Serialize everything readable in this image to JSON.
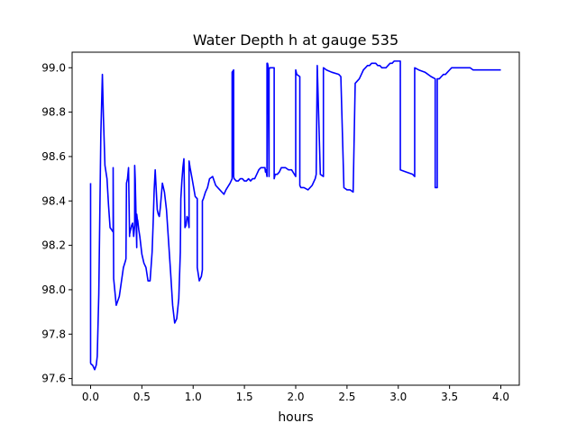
{
  "chart_data": {
    "type": "line",
    "title": "Water Depth h at gauge 535",
    "xlabel": "hours",
    "ylabel": "",
    "xlim": [
      -0.18,
      4.18
    ],
    "ylim": [
      97.57,
      99.07
    ],
    "xticks": [
      0.0,
      0.5,
      1.0,
      1.5,
      2.0,
      2.5,
      3.0,
      3.5,
      4.0
    ],
    "xtick_labels": [
      "0.0",
      "0.5",
      "1.0",
      "1.5",
      "2.0",
      "2.5",
      "3.0",
      "3.5",
      "4.0"
    ],
    "yticks": [
      97.6,
      97.8,
      98.0,
      98.2,
      98.4,
      98.6,
      98.8,
      99.0
    ],
    "ytick_labels": [
      "97.6",
      "97.8",
      "98.0",
      "98.2",
      "98.4",
      "98.6",
      "98.8",
      "99.0"
    ],
    "grid": false,
    "legend": false,
    "series": [
      {
        "color": "#0000ff",
        "x": [
          0.0,
          0.0,
          0.0,
          0.005,
          0.02,
          0.04,
          0.055,
          0.065,
          0.08,
          0.1,
          0.115,
          0.125,
          0.14,
          0.16,
          0.175,
          0.19,
          0.205,
          0.22,
          0.22,
          0.225,
          0.25,
          0.28,
          0.32,
          0.34,
          0.345,
          0.35,
          0.36,
          0.37,
          0.38,
          0.38,
          0.39,
          0.4,
          0.41,
          0.42,
          0.43,
          0.43,
          0.435,
          0.44,
          0.45,
          0.45,
          0.455,
          0.46,
          0.47,
          0.48,
          0.5,
          0.52,
          0.54,
          0.56,
          0.58,
          0.6,
          0.61,
          0.62,
          0.63,
          0.64,
          0.65,
          0.66,
          0.67,
          0.68,
          0.7,
          0.72,
          0.74,
          0.76,
          0.78,
          0.8,
          0.82,
          0.84,
          0.86,
          0.875,
          0.88,
          0.89,
          0.9,
          0.91,
          0.92,
          0.93,
          0.94,
          0.95,
          0.96,
          0.96,
          0.97,
          0.99,
          1.02,
          1.04,
          1.04,
          1.06,
          1.08,
          1.09,
          1.09,
          1.1,
          1.12,
          1.14,
          1.16,
          1.19,
          1.22,
          1.26,
          1.3,
          1.32,
          1.36,
          1.38,
          1.38,
          1.395,
          1.395,
          1.4,
          1.42,
          1.44,
          1.46,
          1.48,
          1.5,
          1.52,
          1.54,
          1.56,
          1.58,
          1.6,
          1.62,
          1.64,
          1.66,
          1.68,
          1.7,
          1.705,
          1.71,
          1.72,
          1.72,
          1.725,
          1.73,
          1.74,
          1.74,
          1.745,
          1.75,
          1.77,
          1.79,
          1.79,
          1.8,
          1.82,
          1.84,
          1.86,
          1.9,
          1.93,
          1.96,
          2.0,
          2.0,
          2.01,
          2.04,
          2.04,
          2.05,
          2.08,
          2.12,
          2.16,
          2.19,
          2.2,
          2.2,
          2.21,
          2.24,
          2.24,
          2.27,
          2.27,
          2.3,
          2.35,
          2.42,
          2.44,
          2.44,
          2.47,
          2.5,
          2.53,
          2.56,
          2.56,
          2.58,
          2.6,
          2.62,
          2.64,
          2.66,
          2.68,
          2.7,
          2.72,
          2.74,
          2.76,
          2.78,
          2.8,
          2.82,
          2.84,
          2.86,
          2.88,
          2.9,
          2.92,
          2.94,
          2.96,
          2.98,
          3.0,
          3.02,
          3.02,
          3.08,
          3.14,
          3.16,
          3.16,
          3.2,
          3.26,
          3.32,
          3.36,
          3.36,
          3.38,
          3.38,
          3.4,
          3.42,
          3.44,
          3.46,
          3.48,
          3.5,
          3.52,
          3.55,
          3.58,
          3.61,
          3.64,
          3.67,
          3.7,
          3.73,
          3.76,
          3.79,
          3.82,
          3.85,
          3.88,
          3.91,
          3.94,
          3.97,
          4.0
        ],
        "y": [
          98.48,
          97.98,
          97.67,
          97.665,
          97.66,
          97.64,
          97.66,
          97.7,
          97.98,
          98.7,
          98.97,
          98.78,
          98.56,
          98.5,
          98.38,
          98.28,
          98.27,
          98.26,
          98.55,
          98.05,
          97.93,
          97.97,
          98.1,
          98.13,
          98.14,
          98.48,
          98.5,
          98.55,
          98.24,
          98.25,
          98.27,
          98.29,
          98.3,
          98.24,
          98.29,
          98.56,
          98.5,
          98.4,
          98.19,
          98.34,
          98.32,
          98.31,
          98.27,
          98.24,
          98.16,
          98.12,
          98.1,
          98.04,
          98.04,
          98.17,
          98.3,
          98.45,
          98.54,
          98.45,
          98.36,
          98.34,
          98.33,
          98.37,
          98.48,
          98.44,
          98.36,
          98.22,
          98.08,
          97.93,
          97.85,
          97.87,
          97.96,
          98.17,
          98.41,
          98.49,
          98.55,
          98.59,
          98.28,
          98.29,
          98.33,
          98.32,
          98.28,
          98.58,
          98.55,
          98.5,
          98.42,
          98.41,
          98.1,
          98.04,
          98.06,
          98.09,
          98.4,
          98.41,
          98.44,
          98.46,
          98.5,
          98.51,
          98.47,
          98.45,
          98.43,
          98.45,
          98.48,
          98.5,
          98.98,
          98.99,
          98.51,
          98.5,
          98.49,
          98.49,
          98.5,
          98.5,
          98.49,
          98.49,
          98.5,
          98.49,
          98.5,
          98.5,
          98.52,
          98.54,
          98.55,
          98.55,
          98.55,
          98.53,
          98.54,
          98.51,
          99.02,
          99.02,
          99.01,
          98.51,
          98.99,
          99.0,
          99.0,
          99.0,
          99.0,
          98.5,
          98.52,
          98.52,
          98.53,
          98.55,
          98.55,
          98.54,
          98.54,
          98.51,
          98.99,
          98.97,
          98.96,
          98.47,
          98.46,
          98.46,
          98.45,
          98.47,
          98.5,
          98.52,
          98.53,
          99.01,
          98.52,
          98.52,
          98.51,
          99.0,
          98.99,
          98.98,
          98.97,
          98.96,
          98.96,
          98.46,
          98.45,
          98.45,
          98.44,
          98.44,
          98.93,
          98.94,
          98.95,
          98.97,
          98.99,
          99.0,
          99.01,
          99.01,
          99.02,
          99.02,
          99.02,
          99.01,
          99.01,
          99.0,
          99.0,
          99.0,
          99.01,
          99.02,
          99.02,
          99.03,
          99.03,
          99.03,
          99.03,
          98.54,
          98.53,
          98.52,
          98.51,
          99.0,
          98.99,
          98.98,
          98.96,
          98.95,
          98.46,
          98.46,
          98.95,
          98.95,
          98.96,
          98.97,
          98.97,
          98.98,
          98.99,
          99.0,
          99.0,
          99.0,
          99.0,
          99.0,
          99.0,
          99.0,
          98.99,
          98.99,
          98.99,
          98.99,
          98.99,
          98.99,
          98.99,
          98.99,
          98.99,
          98.99
        ]
      }
    ]
  }
}
